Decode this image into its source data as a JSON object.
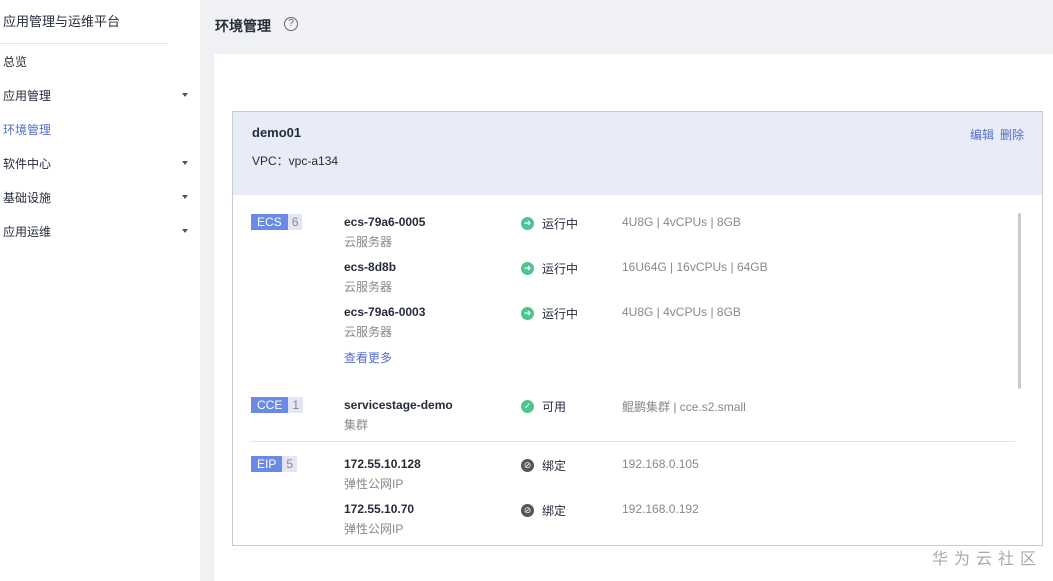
{
  "sidebar": {
    "title": "应用管理与运维平台",
    "items": [
      {
        "label": "总览",
        "expandable": false
      },
      {
        "label": "应用管理",
        "expandable": true
      },
      {
        "label": "环境管理",
        "expandable": false,
        "active": true
      },
      {
        "label": "软件中心",
        "expandable": true
      },
      {
        "label": "基础设施",
        "expandable": true
      },
      {
        "label": "应用运维",
        "expandable": true
      }
    ]
  },
  "header": {
    "title": "环境管理",
    "help": "?"
  },
  "env": {
    "name": "demo01",
    "vpc": "VPC：vpc-a134",
    "edit": "编辑",
    "delete": "删除",
    "ecs": {
      "tag": "ECS",
      "count": "6",
      "more": "查看更多",
      "items": [
        {
          "name": "ecs-79a6-0005",
          "type": "云服务器",
          "status": "运行中",
          "spec": "4U8G | 4vCPUs | 8GB"
        },
        {
          "name": "ecs-8d8b",
          "type": "云服务器",
          "status": "运行中",
          "spec": "16U64G | 16vCPUs | 64GB"
        },
        {
          "name": "ecs-79a6-0003",
          "type": "云服务器",
          "status": "运行中",
          "spec": "4U8G | 4vCPUs | 8GB"
        }
      ]
    },
    "cce": {
      "tag": "CCE",
      "count": "1",
      "items": [
        {
          "name": "servicestage-demo",
          "type": "集群",
          "status": "可用",
          "spec": "鲲鹏集群 | cce.s2.small"
        }
      ]
    },
    "eip": {
      "tag": "EIP",
      "count": "5",
      "items": [
        {
          "name": "172.55.10.128",
          "type": "弹性公网IP",
          "status": "绑定",
          "spec": "192.168.0.105"
        },
        {
          "name": "172.55.10.70",
          "type": "弹性公网IP",
          "status": "绑定",
          "spec": "192.168.0.192"
        }
      ]
    }
  },
  "watermark": "华为云社区",
  "colors": {
    "accent": "#526ecc",
    "running": "#4cc591",
    "tag": "#6b8ae6"
  }
}
